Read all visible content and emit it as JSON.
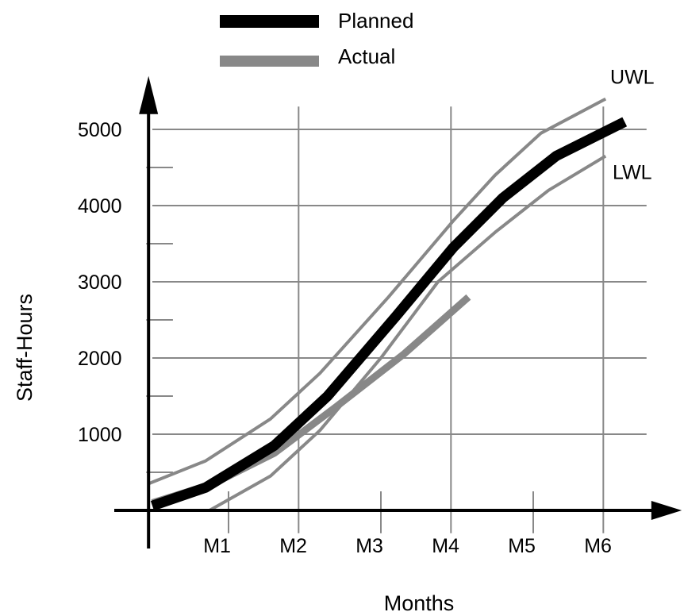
{
  "chart_data": {
    "type": "line",
    "xlabel": "Months",
    "ylabel": "Staff-Hours",
    "x_tick_labels": [
      "M1",
      "M2",
      "M3",
      "M4",
      "M5",
      "M6"
    ],
    "y_ticks": [
      1000,
      2000,
      3000,
      4000,
      5000
    ],
    "ylim": [
      -500,
      5700
    ],
    "xlim": [
      0,
      6.8
    ],
    "grid": true,
    "legend": {
      "position": "top-center",
      "entries": [
        "Planned",
        "Actual"
      ]
    },
    "colors": {
      "planned": "#000000",
      "actual": "#888888",
      "limits": "#888888",
      "grid": "#888888"
    },
    "series": [
      {
        "name": "Planned",
        "style": "planned",
        "x": [
          0,
          0.7,
          1.6,
          2.3,
          3.2,
          3.95,
          4.6,
          5.3,
          6.2
        ],
        "y": [
          60,
          300,
          850,
          1500,
          2550,
          3450,
          4100,
          4650,
          5100
        ]
      },
      {
        "name": "Actual",
        "style": "actual",
        "x": [
          0,
          0.8,
          1.6,
          2.4,
          3.3,
          4.15
        ],
        "y": [
          100,
          350,
          750,
          1350,
          2050,
          2800
        ]
      },
      {
        "name": "UWL",
        "style": "limit",
        "x": [
          -0.05,
          0.7,
          1.55,
          2.2,
          3.1,
          3.95,
          4.5,
          5.1,
          5.95
        ],
        "y": [
          350,
          650,
          1200,
          1800,
          2800,
          3800,
          4400,
          4950,
          5400
        ]
      },
      {
        "name": "LWL",
        "style": "limit",
        "x": [
          0.75,
          1.55,
          2.2,
          3.0,
          3.75,
          4.5,
          5.2,
          5.95
        ],
        "y": [
          0,
          450,
          1050,
          2000,
          3000,
          3650,
          4200,
          4650
        ]
      }
    ],
    "annotations": [
      {
        "text": "UWL",
        "x": 6.3,
        "y": 5600
      },
      {
        "text": "LWL",
        "x": 6.3,
        "y": 4350
      }
    ]
  }
}
